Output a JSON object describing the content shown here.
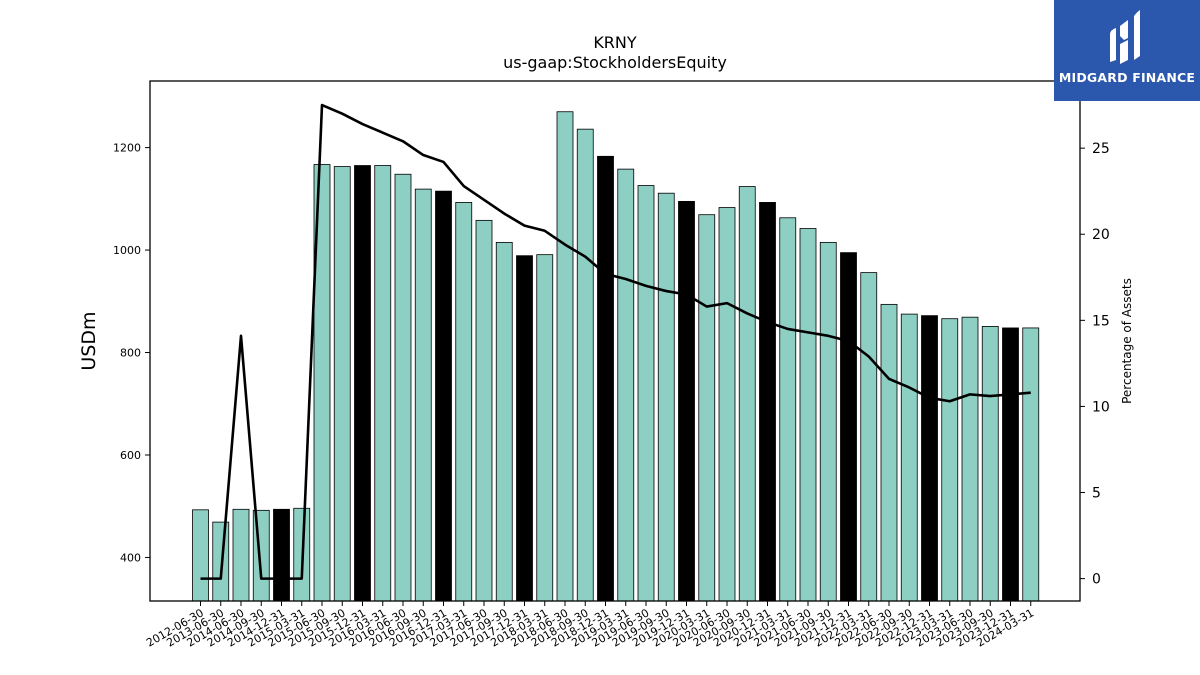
{
  "title": "KRNY",
  "subtitle": "us-gaap:StockholdersEquity",
  "logo": {
    "text": "MIDGARD FINANCE",
    "bg_color": "#2b58ad"
  },
  "chart_data": {
    "type": "bar",
    "categories": [
      "2012-06-30",
      "2013-06-30",
      "2014-06-30",
      "2014-09-30",
      "2014-12-31",
      "2015-03-31",
      "2015-06-30",
      "2015-09-30",
      "2015-12-31",
      "2016-03-31",
      "2016-06-30",
      "2016-09-30",
      "2016-12-31",
      "2017-03-31",
      "2017-06-30",
      "2017-09-30",
      "2017-12-31",
      "2018-03-31",
      "2018-06-30",
      "2018-09-30",
      "2018-12-31",
      "2019-03-31",
      "2019-06-30",
      "2019-09-30",
      "2019-12-31",
      "2020-03-31",
      "2020-06-30",
      "2020-09-30",
      "2020-12-31",
      "2021-03-31",
      "2021-06-30",
      "2021-09-30",
      "2021-12-31",
      "2022-03-31",
      "2022-06-30",
      "2022-09-30",
      "2022-12-31",
      "2023-03-31",
      "2023-06-30",
      "2023-09-30",
      "2023-12-31",
      "2024-03-31"
    ],
    "series": [
      {
        "axis": "left",
        "kind": "bar",
        "values": [
          493,
          469,
          494,
          492,
          494,
          496,
          1167,
          1163,
          1165,
          1165,
          1148,
          1119,
          1115,
          1093,
          1058,
          1015,
          989,
          991,
          1270,
          1236,
          1183,
          1158,
          1126,
          1111,
          1095,
          1069,
          1083,
          1124,
          1093,
          1063,
          1042,
          1015,
          995,
          956,
          894,
          875,
          872,
          866,
          869,
          851,
          848,
          848
        ],
        "highlight": [
          false,
          false,
          false,
          false,
          true,
          false,
          false,
          false,
          true,
          false,
          false,
          false,
          true,
          false,
          false,
          false,
          true,
          false,
          false,
          false,
          true,
          false,
          false,
          false,
          true,
          false,
          false,
          false,
          true,
          false,
          false,
          false,
          true,
          false,
          false,
          false,
          true,
          false,
          false,
          false,
          true,
          false
        ]
      },
      {
        "axis": "right",
        "kind": "line",
        "values": [
          0,
          0,
          14.1,
          0,
          0,
          0,
          27.5,
          27.0,
          26.4,
          25.9,
          25.4,
          24.6,
          24.2,
          22.8,
          22.0,
          21.2,
          20.5,
          20.2,
          19.4,
          18.7,
          17.7,
          17.4,
          17.0,
          16.7,
          16.5,
          15.8,
          16.0,
          15.4,
          14.9,
          14.5,
          14.3,
          14.1,
          13.8,
          12.9,
          11.6,
          11.1,
          10.5,
          10.3,
          10.7,
          10.6,
          10.7,
          10.8
        ]
      }
    ],
    "ylabel": "USDm",
    "y2label": "Percentage of Assets",
    "ylim": [
      315,
      1330
    ],
    "y2lim": [
      -1.3,
      28.9
    ],
    "yticks": [
      400,
      600,
      800,
      1000,
      1200
    ],
    "y2ticks": [
      0,
      5,
      10,
      15,
      20,
      25
    ],
    "colors": {
      "bar": "#8ecfc4",
      "bar_highlight": "#000000",
      "line": "#000000"
    },
    "grid": false,
    "legend": "none"
  }
}
